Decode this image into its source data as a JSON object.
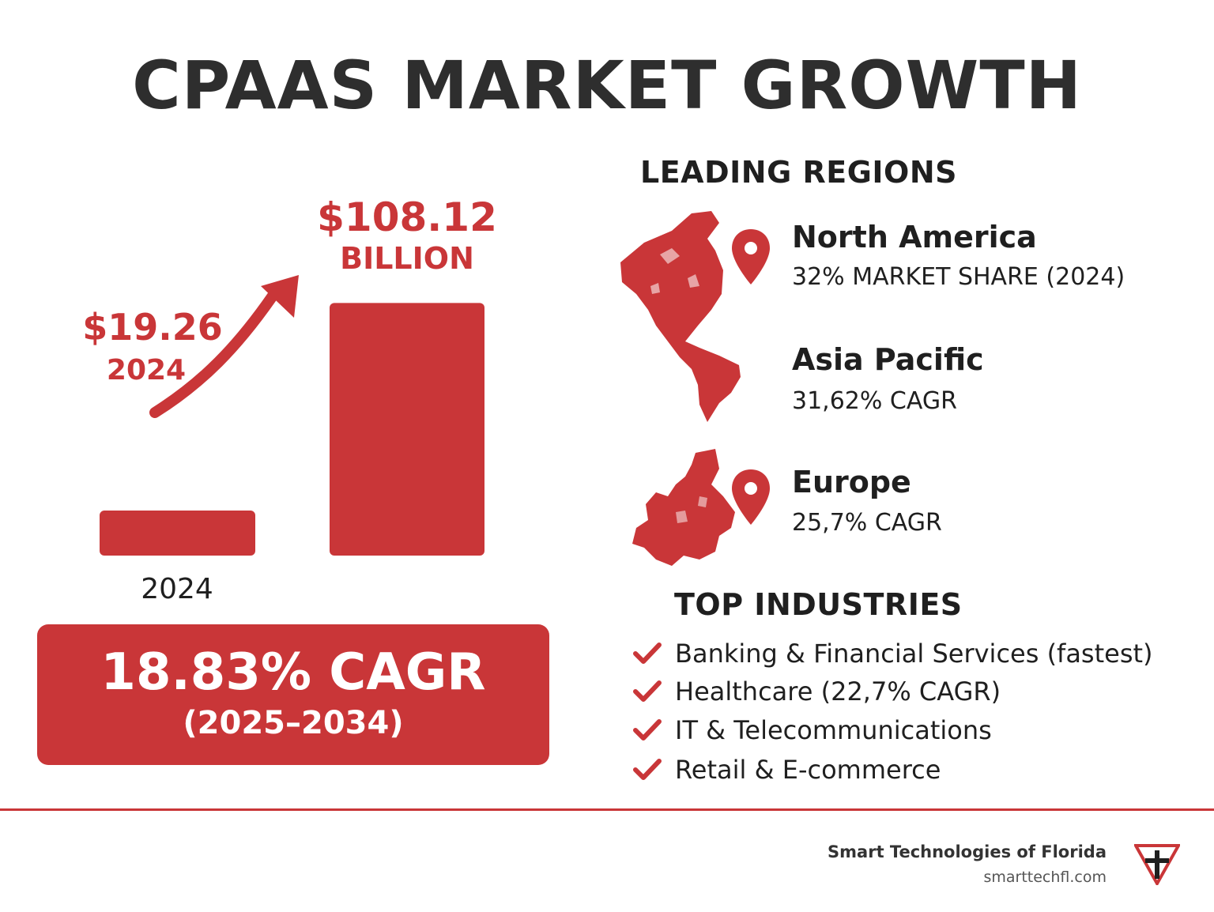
{
  "title": "CPAAS MARKET GROWTH",
  "chart_data": {
    "type": "bar",
    "categories": [
      "2024",
      ""
    ],
    "values": [
      19.26,
      108.12
    ],
    "unit": "Billion USD",
    "ylim": [
      0,
      115
    ],
    "labels": {
      "bar1_value": "$19.26",
      "bar1_year": "2024",
      "bar2_value": "$108.12",
      "bar2_unit": "BILLION",
      "x_label": "2024"
    },
    "cagr": "18.83% CAGR",
    "cagr_period": "(2025–2034)"
  },
  "regions": {
    "heading": "LEADING REGIONS",
    "items": [
      {
        "name": "North America",
        "stat": "32% MARKET SHARE (2024)"
      },
      {
        "name": "Asia Pacific",
        "stat": "31,62% CAGR"
      },
      {
        "name": "Europe",
        "stat": "25,7% CAGR"
      }
    ]
  },
  "industries": {
    "heading": "TOP INDUSTRIES",
    "items": [
      "Banking & Financial Services (fastest)",
      "Healthcare (22,7% CAGR)",
      "IT & Telecommunications",
      "Retail & E-commerce"
    ]
  },
  "footer": {
    "company": "Smart Technologies of Florida",
    "website": "smarttechfl.com"
  },
  "colors": {
    "accent": "#c93638",
    "text": "#1f1f1f"
  }
}
